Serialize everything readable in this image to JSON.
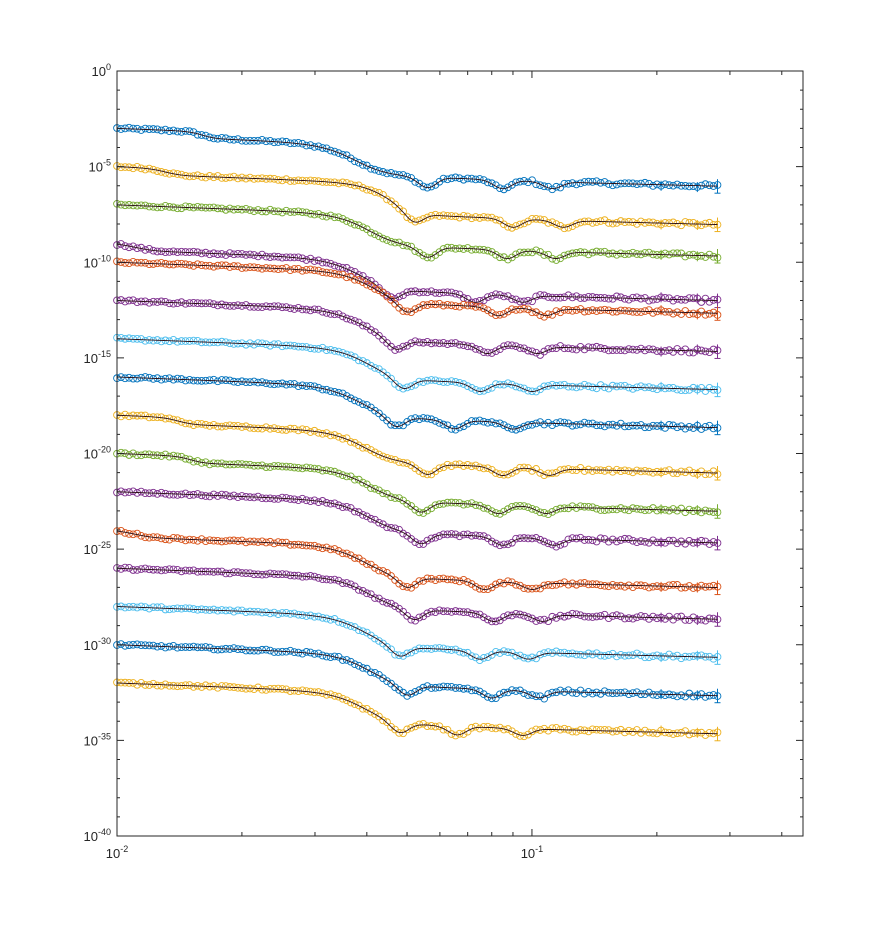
{
  "chart_data": {
    "type": "scatter",
    "title": "",
    "xlabel": "",
    "ylabel": "",
    "x_scale": "log",
    "y_scale": "log",
    "xlim": [
      0.01,
      0.45
    ],
    "ylim": [
      1e-40,
      1
    ],
    "grid": false,
    "legend": "none",
    "x_ticks": [
      {
        "base": "10",
        "exp": "-2",
        "value": 0.01
      },
      {
        "base": "10",
        "exp": "-1",
        "value": 0.1
      }
    ],
    "y_ticks": [
      {
        "base": "10",
        "exp": "0",
        "value": 1
      },
      {
        "base": "10",
        "exp": "-5",
        "value": 1e-05
      },
      {
        "base": "10",
        "exp": "-10",
        "value": 1e-10
      },
      {
        "base": "10",
        "exp": "-15",
        "value": 1e-15
      },
      {
        "base": "10",
        "exp": "-20",
        "value": 1e-20
      },
      {
        "base": "10",
        "exp": "-25",
        "value": 1e-25
      },
      {
        "base": "10",
        "exp": "-30",
        "value": 1e-30
      },
      {
        "base": "10",
        "exp": "-35",
        "value": 1e-35
      },
      {
        "base": "10",
        "exp": "-40",
        "value": 1e-40
      }
    ],
    "x_range_of_points": [
      0.01,
      0.28
    ],
    "series": [
      {
        "color": "#0072bd",
        "offset_exp": -3.0,
        "knee": 0.037,
        "bump": 0.016,
        "minima": [
          0.056,
          0.085,
          0.112
        ]
      },
      {
        "color": "#edb120",
        "offset_exp": -5.0,
        "knee": 0.045,
        "bump": 0.013,
        "minima": [
          0.052,
          0.09,
          0.119
        ]
      },
      {
        "color": "#77ac30",
        "offset_exp": -7.0,
        "knee": 0.04,
        "bump": 0.0,
        "minima": [
          0.056,
          0.087,
          0.114
        ]
      },
      {
        "color": "#7e2f8e",
        "offset_exp": -9.0,
        "knee": 0.038,
        "bump": 0.011,
        "minima": [
          0.046,
          0.073,
          0.095
        ]
      },
      {
        "color": "#d95319",
        "offset_exp": -10.0,
        "knee": 0.041,
        "bump": 0.0,
        "minima": [
          0.05,
          0.083,
          0.108
        ]
      },
      {
        "color": "#7e2f8e",
        "offset_exp": -12.0,
        "knee": 0.039,
        "bump": 0.0,
        "minima": [
          0.047,
          0.078,
          0.103
        ]
      },
      {
        "color": "#4dbeee",
        "offset_exp": -14.0,
        "knee": 0.04,
        "bump": 0.0,
        "minima": [
          0.049,
          0.075,
          0.1
        ]
      },
      {
        "color": "#0072bd",
        "offset_exp": -16.0,
        "knee": 0.038,
        "bump": 0.0,
        "minima": [
          0.047,
          0.065,
          0.09
        ]
      },
      {
        "color": "#edb120",
        "offset_exp": -18.0,
        "knee": 0.039,
        "bump": 0.014,
        "minima": [
          0.056,
          0.085,
          0.11
        ]
      },
      {
        "color": "#77ac30",
        "offset_exp": -20.0,
        "knee": 0.04,
        "bump": 0.015,
        "minima": [
          0.054,
          0.083,
          0.108
        ]
      },
      {
        "color": "#7e2f8e",
        "offset_exp": -22.0,
        "knee": 0.04,
        "bump": 0.0,
        "minima": [
          0.054,
          0.085,
          0.113
        ]
      },
      {
        "color": "#d95319",
        "offset_exp": -24.0,
        "knee": 0.039,
        "bump": 0.011,
        "minima": [
          0.05,
          0.077,
          0.1
        ]
      },
      {
        "color": "#7e2f8e",
        "offset_exp": -26.0,
        "knee": 0.04,
        "bump": 0.0,
        "minima": [
          0.052,
          0.081,
          0.106
        ]
      },
      {
        "color": "#4dbeee",
        "offset_exp": -28.0,
        "knee": 0.039,
        "bump": 0.0,
        "minima": [
          0.048,
          0.075,
          0.098
        ]
      },
      {
        "color": "#0072bd",
        "offset_exp": -30.0,
        "knee": 0.04,
        "bump": 0.0,
        "minima": [
          0.05,
          0.08,
          0.104
        ]
      },
      {
        "color": "#edb120",
        "offset_exp": -32.0,
        "knee": 0.039,
        "bump": 0.0,
        "minima": [
          0.048,
          0.066,
          0.095
        ]
      }
    ]
  }
}
